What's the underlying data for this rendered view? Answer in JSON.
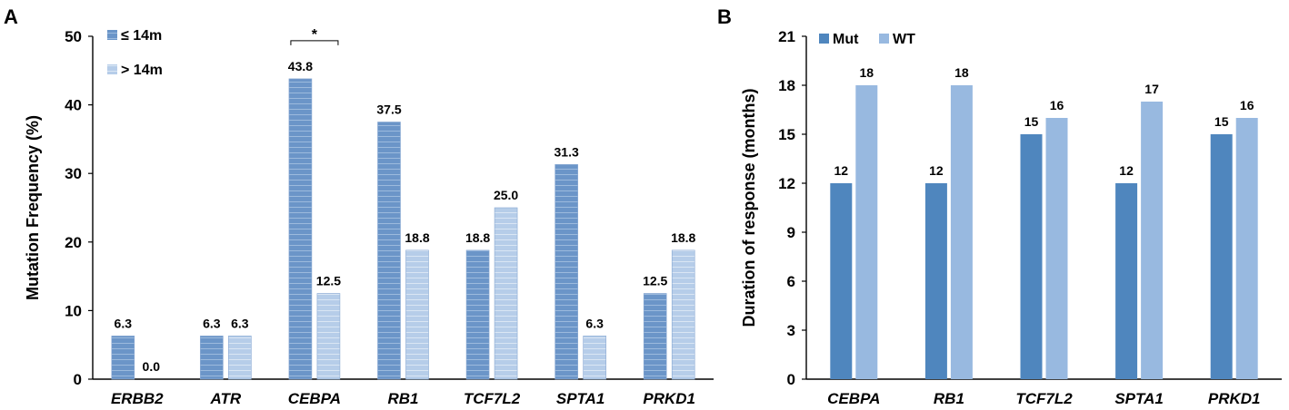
{
  "chart_data": [
    {
      "panel": "A",
      "type": "bar",
      "ylabel": "Mutation Frequency (%)",
      "xlabel": "",
      "ylim": [
        0,
        50
      ],
      "yticks": [
        "0",
        "10",
        "20",
        "30",
        "40",
        "50"
      ],
      "categories": [
        "ERBB2",
        "ATR",
        "CEBPA",
        "RB1",
        "TCF7L2",
        "SPTA1",
        "PRKD1"
      ],
      "series": [
        {
          "name": "≤ 14m",
          "color": "#6b95c8",
          "values": [
            6.3,
            6.3,
            43.8,
            37.5,
            18.8,
            31.3,
            12.5
          ],
          "labels": [
            "6.3",
            "6.3",
            "43.8",
            "37.5",
            "18.8",
            "31.3",
            "12.5"
          ]
        },
        {
          "name": "> 14m",
          "color": "#b6cde9",
          "values": [
            0.0,
            6.3,
            12.5,
            18.8,
            25.0,
            6.3,
            18.8
          ],
          "labels": [
            "0.0",
            "6.3",
            "12.5",
            "18.8",
            "25.0",
            "6.3",
            "18.8"
          ]
        }
      ],
      "annotation": {
        "text": "*",
        "category": "CEBPA"
      },
      "legend_position": "top-left"
    },
    {
      "panel": "B",
      "type": "bar",
      "ylabel": "Duration of response (months)",
      "xlabel": "",
      "ylim": [
        0,
        21
      ],
      "yticks": [
        "0",
        "3",
        "6",
        "9",
        "12",
        "15",
        "18",
        "21"
      ],
      "categories": [
        "CEBPA",
        "RB1",
        "TCF7L2",
        "SPTA1",
        "PRKD1"
      ],
      "series": [
        {
          "name": "Mut",
          "color": "#4f86be",
          "values": [
            12,
            12,
            15,
            12,
            15
          ],
          "labels": [
            "12",
            "12",
            "15",
            "12",
            "15"
          ]
        },
        {
          "name": "WT",
          "color": "#98b9e0",
          "values": [
            18,
            18,
            16,
            17,
            16
          ],
          "labels": [
            "18",
            "18",
            "16",
            "17",
            "16"
          ]
        }
      ],
      "legend_position": "top-left"
    }
  ]
}
